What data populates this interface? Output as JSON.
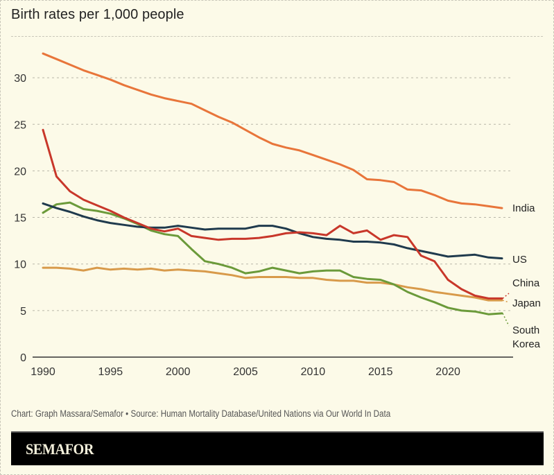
{
  "chart_data": {
    "type": "line",
    "title": "Birth rates per 1,000 people",
    "xlabel": "",
    "ylabel": "",
    "xlim": [
      1990,
      2024
    ],
    "ylim": [
      0,
      33
    ],
    "grid": true,
    "x_ticks": [
      "1990",
      "1995",
      "2000",
      "2005",
      "2010",
      "2015",
      "2020"
    ],
    "y_ticks": [
      "0",
      "5",
      "10",
      "15",
      "20",
      "25",
      "30"
    ],
    "x": [
      1990,
      1991,
      1992,
      1993,
      1994,
      1995,
      1996,
      1997,
      1998,
      1999,
      2000,
      2001,
      2002,
      2003,
      2004,
      2005,
      2006,
      2007,
      2008,
      2009,
      2010,
      2011,
      2012,
      2013,
      2014,
      2015,
      2016,
      2017,
      2018,
      2019,
      2020,
      2021,
      2022,
      2023,
      2024
    ],
    "series": [
      {
        "name": "India",
        "color": "#e8753a",
        "values": [
          32.6,
          32.0,
          31.4,
          30.8,
          30.3,
          29.8,
          29.2,
          28.7,
          28.2,
          27.8,
          27.5,
          27.2,
          26.5,
          25.8,
          25.2,
          24.4,
          23.6,
          22.9,
          22.5,
          22.2,
          21.7,
          21.2,
          20.7,
          20.1,
          19.1,
          19.0,
          18.8,
          18.0,
          17.9,
          17.4,
          16.8,
          16.5,
          16.4,
          16.2,
          16.0
        ]
      },
      {
        "name": "US",
        "color": "#1f3a4d",
        "values": [
          16.5,
          16.0,
          15.6,
          15.1,
          14.7,
          14.4,
          14.2,
          14.0,
          13.9,
          13.9,
          14.1,
          13.9,
          13.7,
          13.8,
          13.8,
          13.8,
          14.1,
          14.1,
          13.8,
          13.3,
          12.9,
          12.7,
          12.6,
          12.4,
          12.4,
          12.3,
          12.1,
          11.7,
          11.4,
          11.1,
          10.8,
          10.9,
          11.0,
          10.7,
          10.6
        ]
      },
      {
        "name": "China",
        "color": "#c8372a",
        "values": [
          24.4,
          19.4,
          17.8,
          16.9,
          16.3,
          15.7,
          15.0,
          14.4,
          13.8,
          13.5,
          13.8,
          13.0,
          12.8,
          12.6,
          12.7,
          12.7,
          12.8,
          13.0,
          13.3,
          13.4,
          13.3,
          13.1,
          14.1,
          13.3,
          13.6,
          12.6,
          13.1,
          12.9,
          10.9,
          10.3,
          8.3,
          7.3,
          6.6,
          6.3,
          6.3
        ]
      },
      {
        "name": "Japan",
        "color": "#d89a4a",
        "values": [
          9.6,
          9.6,
          9.5,
          9.3,
          9.6,
          9.4,
          9.5,
          9.4,
          9.5,
          9.3,
          9.4,
          9.3,
          9.2,
          9.0,
          8.8,
          8.5,
          8.6,
          8.6,
          8.6,
          8.5,
          8.5,
          8.3,
          8.2,
          8.2,
          8.0,
          8.0,
          7.8,
          7.5,
          7.3,
          7.0,
          6.8,
          6.6,
          6.4,
          6.1,
          6.1
        ]
      },
      {
        "name": "South Korea",
        "color": "#6b9a3a",
        "values": [
          15.5,
          16.4,
          16.6,
          15.9,
          15.7,
          15.4,
          14.9,
          14.3,
          13.6,
          13.2,
          13.0,
          11.6,
          10.3,
          10.0,
          9.6,
          9.0,
          9.2,
          9.6,
          9.3,
          9.0,
          9.2,
          9.3,
          9.3,
          8.6,
          8.4,
          8.3,
          7.8,
          7.0,
          6.4,
          5.9,
          5.3,
          5.0,
          4.9,
          4.6,
          4.7
        ]
      }
    ],
    "series_labels": [
      {
        "series": "India",
        "lines": [
          "India"
        ]
      },
      {
        "series": "US",
        "lines": [
          "US"
        ]
      },
      {
        "series": "China",
        "lines": [
          "China"
        ]
      },
      {
        "series": "Japan",
        "lines": [
          "Japan"
        ]
      },
      {
        "series": "South Korea",
        "lines": [
          "South",
          "Korea"
        ]
      }
    ],
    "legend": "inline-right"
  },
  "footer": {
    "credit": "Chart: Graph Massara/Semafor • Source: Human Mortality Database/United Nations via Our World In Data",
    "brand": "SEMAFOR"
  }
}
